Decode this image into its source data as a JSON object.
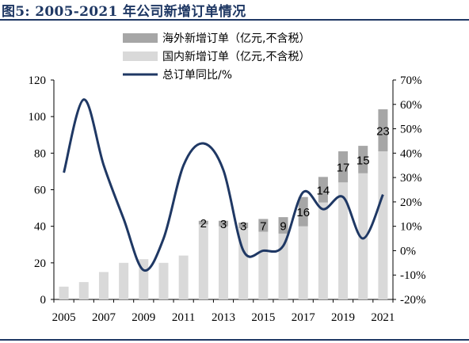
{
  "title": "图5:  2005-2021 年公司新增订单情况",
  "chart_data": {
    "type": "bar",
    "stacked": true,
    "categories": [
      "2005",
      "2006",
      "2007",
      "2008",
      "2009",
      "2010",
      "2011",
      "2012",
      "2013",
      "2014",
      "2015",
      "2016",
      "2017",
      "2018",
      "2019",
      "2020",
      "2021"
    ],
    "x_tick_labels": [
      "2005",
      "2007",
      "2009",
      "2011",
      "2013",
      "2015",
      "2017",
      "2019",
      "2021"
    ],
    "series": [
      {
        "name": "国内新增订单（亿元,不含税）",
        "type": "bar",
        "color": "#d9d9d9",
        "values": [
          7,
          9.5,
          15,
          20,
          22,
          20,
          24,
          41,
          40,
          39,
          37,
          36,
          40,
          53,
          64,
          69,
          81
        ]
      },
      {
        "name": "海外新增订单（亿元,不含税）",
        "type": "bar",
        "color": "#a6a6a6",
        "values": [
          0,
          0,
          0,
          0,
          0,
          0,
          0,
          2,
          3,
          3,
          7,
          9,
          16,
          14,
          17,
          15,
          23
        ]
      },
      {
        "name": "总订单同比/%",
        "type": "line",
        "axis": "right",
        "color": "#1f3864",
        "values": [
          32,
          62,
          35,
          13,
          -8,
          5,
          35,
          44,
          33,
          0,
          0,
          2,
          24,
          17,
          22,
          5,
          23
        ]
      }
    ],
    "bar_labels": [
      {
        "year": "2012",
        "text": "2"
      },
      {
        "year": "2013",
        "text": "3"
      },
      {
        "year": "2014",
        "text": "3"
      },
      {
        "year": "2015",
        "text": "7"
      },
      {
        "year": "2016",
        "text": "9"
      },
      {
        "year": "2017",
        "text": "16"
      },
      {
        "year": "2018",
        "text": "14"
      },
      {
        "year": "2019",
        "text": "17"
      },
      {
        "year": "2020",
        "text": "15"
      },
      {
        "year": "2021",
        "text": "23"
      }
    ],
    "y_left": {
      "min": 0,
      "max": 120,
      "ticks": [
        "0",
        "20",
        "40",
        "60",
        "80",
        "100",
        "120"
      ]
    },
    "y_right": {
      "min": -20,
      "max": 70,
      "ticks": [
        "-20%",
        "-10%",
        "0%",
        "10%",
        "20%",
        "30%",
        "40%",
        "50%",
        "60%",
        "70%"
      ]
    },
    "legend_position": "top-center",
    "grid": false
  }
}
